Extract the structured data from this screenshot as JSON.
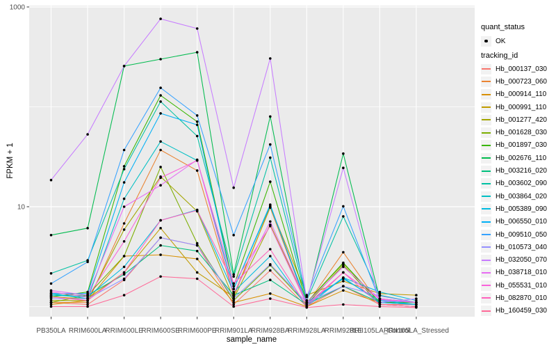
{
  "chart_data": {
    "type": "line",
    "title": "",
    "xlabel": "sample_name",
    "ylabel": "FPKM + 1",
    "y_scale": "log10",
    "ylim": [
      0.79,
      1030
    ],
    "grid": true,
    "legend_position": "right",
    "panel_bg": "#EBEBEB",
    "gridline_color": "#FFFFFF",
    "point_color": "#000000",
    "axis_text_color": "#4D4D4D",
    "tick_color": "#333333",
    "y_major_ticks": [
      {
        "label": "10",
        "value": 10
      },
      {
        "label": "1000",
        "value": 1000
      }
    ],
    "y_minor_gridlines": [
      1,
      100
    ],
    "categories": [
      "PB350LA",
      "RRIM600LA",
      "RRIM600LE",
      "RRIM600SE",
      "RRIM600PE",
      "RRIM901LA",
      "RRIM928BA",
      "RRIM928LA",
      "RRIM928LE",
      "RRII105LA_Control",
      "RRII105LA_Stressed"
    ],
    "legend": {
      "quant_status": {
        "title": "quant_status",
        "items": [
          {
            "label": "OK",
            "marker": "point",
            "color": "#000000"
          }
        ]
      },
      "tracking_id_title": "tracking_id"
    },
    "series": [
      {
        "name": "Hb_000137_030",
        "color": "#F8766D",
        "values": [
          1.1,
          1.05,
          1.85,
          4.9,
          4.1,
          1.05,
          2.3,
          1.0,
          1.6,
          1.05,
          1.05
        ]
      },
      {
        "name": "Hb_000723_060",
        "color": "#EA8331",
        "values": [
          1.1,
          1.1,
          6.8,
          37,
          23,
          1.3,
          9.8,
          1.05,
          3.5,
          1.05,
          1.0
        ]
      },
      {
        "name": "Hb_000914_110",
        "color": "#D89000",
        "values": [
          1.05,
          1.15,
          3.2,
          3.3,
          3.0,
          1.1,
          1.35,
          1.0,
          1.45,
          1.1,
          1.05
        ]
      },
      {
        "name": "Hb_000991_110",
        "color": "#C09B00",
        "values": [
          1.25,
          1.2,
          2.2,
          6.1,
          2.2,
          1.25,
          10.0,
          1.3,
          1.8,
          1.35,
          1.3
        ]
      },
      {
        "name": "Hb_001277_420",
        "color": "#A3A500",
        "values": [
          1.15,
          1.15,
          5.9,
          20,
          9.0,
          1.2,
          6.6,
          1.1,
          2.7,
          1.1,
          1.1
        ]
      },
      {
        "name": "Hb_001628_030",
        "color": "#7CAE00",
        "values": [
          1.1,
          1.3,
          3.2,
          25,
          4.3,
          1.15,
          2.6,
          1.05,
          2.6,
          1.05,
          1.0
        ]
      },
      {
        "name": "Hb_001897_030",
        "color": "#39B600",
        "values": [
          1.25,
          1.4,
          25.4,
          130,
          71,
          1.6,
          17.8,
          1.1,
          2.75,
          1.1,
          1.1
        ]
      },
      {
        "name": "Hb_002676_110",
        "color": "#00BB4E",
        "values": [
          5.2,
          6.1,
          256,
          300,
          352,
          2.1,
          80,
          1.1,
          34,
          1.2,
          1.1
        ]
      },
      {
        "name": "Hb_003216_020",
        "color": "#00BF7D",
        "values": [
          1.3,
          1.3,
          2.1,
          4.1,
          3.6,
          1.3,
          1.85,
          1.05,
          1.6,
          1.1,
          1.05
        ]
      },
      {
        "name": "Hb_003602_090",
        "color": "#00C1A3",
        "values": [
          2.15,
          2.9,
          23.8,
          113,
          51,
          2.0,
          31,
          1.15,
          8.0,
          1.3,
          1.1
        ]
      },
      {
        "name": "Hb_003864_020",
        "color": "#00BFC4",
        "values": [
          1.35,
          1.2,
          12,
          45,
          29,
          1.5,
          10.2,
          1.1,
          1.9,
          1.15,
          1.05
        ]
      },
      {
        "name": "Hb_005389_090",
        "color": "#00BAE0",
        "values": [
          1.3,
          1.25,
          2.5,
          7.3,
          9.3,
          1.4,
          3.2,
          1.0,
          1.95,
          1.4,
          1.15
        ]
      },
      {
        "name": "Hb_006550_010",
        "color": "#00B0F6",
        "values": [
          1.35,
          1.35,
          17.5,
          86,
          66,
          1.5,
          10.5,
          1.05,
          1.95,
          1.1,
          1.05
        ]
      },
      {
        "name": "Hb_009510_050",
        "color": "#35A2FF",
        "values": [
          1.7,
          2.8,
          37,
          155,
          82,
          5.2,
          42,
          1.25,
          10.1,
          1.15,
          1.1
        ]
      },
      {
        "name": "Hb_010573_040",
        "color": "#9590FF",
        "values": [
          1.2,
          1.2,
          1.9,
          4.9,
          4.1,
          1.2,
          2.65,
          1.1,
          1.6,
          1.28,
          1.1
        ]
      },
      {
        "name": "Hb_032050_070",
        "color": "#C77CFF",
        "values": [
          18.5,
          53,
          256,
          760,
          608,
          15.5,
          305,
          1.15,
          24.5,
          1.1,
          1.2
        ]
      },
      {
        "name": "Hb_038718_010",
        "color": "#E76BF3",
        "values": [
          1.45,
          1.3,
          10.0,
          16.4,
          29.5,
          1.35,
          7.1,
          1.1,
          2.5,
          1.2,
          1.1
        ]
      },
      {
        "name": "Hb_055531_010",
        "color": "#FA62DB",
        "values": [
          1.4,
          1.25,
          4.5,
          19.5,
          29,
          1.7,
          6.4,
          1.05,
          2.2,
          1.18,
          1.1
        ]
      },
      {
        "name": "Hb_082870_010",
        "color": "#FF62BC",
        "values": [
          1.25,
          1.15,
          2.2,
          7.3,
          9.2,
          1.7,
          3.76,
          1.0,
          2.2,
          1.05,
          1.0
        ]
      },
      {
        "name": "Hb_160459_030",
        "color": "#FF6A98",
        "values": [
          1.0,
          1.0,
          1.3,
          2.0,
          1.9,
          1.0,
          1.2,
          0.98,
          1.05,
          1.0,
          0.98
        ]
      }
    ]
  }
}
